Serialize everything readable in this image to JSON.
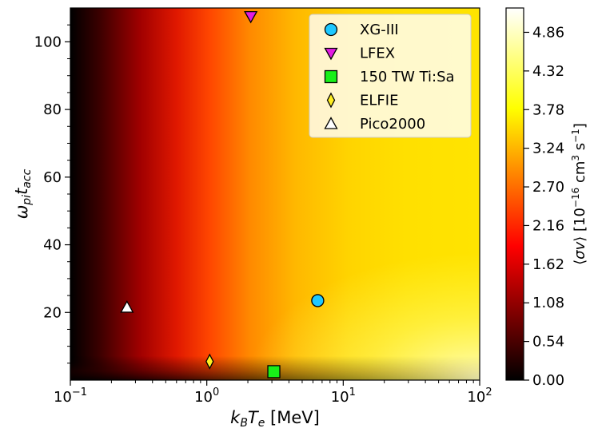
{
  "chart_data": {
    "type": "heatmap",
    "xlabel": "k_B T_e [MeV]",
    "ylabel": "ω_pi t_acc",
    "colorbar_label": "⟨σv⟩ [10⁻¹⁶ cm³ s⁻¹]",
    "xscale": "log",
    "xlim": [
      0.1,
      100
    ],
    "ylim": [
      0,
      110
    ],
    "x_ticks": [
      {
        "value": 0.1,
        "base": "10",
        "exp": "−1"
      },
      {
        "value": 1,
        "base": "10",
        "exp": "0"
      },
      {
        "value": 10,
        "base": "10",
        "exp": "1"
      },
      {
        "value": 100,
        "base": "10",
        "exp": "2"
      }
    ],
    "y_ticks": [
      20,
      40,
      60,
      80,
      100
    ],
    "colorbar_ticks": [
      "0.00",
      "0.54",
      "1.08",
      "1.62",
      "2.16",
      "2.70",
      "3.24",
      "3.78",
      "4.32",
      "4.86"
    ],
    "colorbar_range": [
      0,
      5.2
    ],
    "colormap": "hot",
    "grid": false,
    "legend_position": "top-right",
    "series": [
      {
        "name": "XG-III",
        "marker": "circle",
        "color": "#1ec8ff",
        "x": 6.5,
        "y": 23.5
      },
      {
        "name": "LFEX",
        "marker": "triangle-down",
        "color": "#e21be2",
        "x": 2.1,
        "y": 107.5
      },
      {
        "name": "150 TW Ti:Sa",
        "marker": "square",
        "color": "#18f018",
        "x": 3.1,
        "y": 2.5
      },
      {
        "name": "ELFIE",
        "marker": "diamond",
        "color": "#ffee22",
        "x": 1.05,
        "y": 5.5
      },
      {
        "name": "Pico2000",
        "marker": "triangle-up",
        "color": "#ffffff",
        "x": 0.26,
        "y": 21.5
      }
    ]
  }
}
